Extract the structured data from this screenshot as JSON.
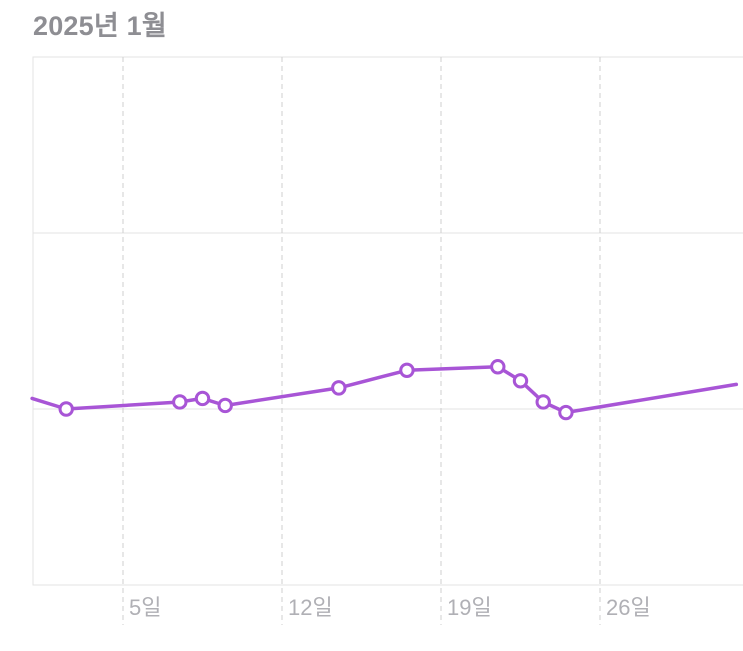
{
  "chart_data": {
    "type": "line",
    "title": "2025년 1월",
    "xlabel": "",
    "ylabel": "",
    "x_ticks": [
      {
        "day": 5,
        "label": "5일"
      },
      {
        "day": 12,
        "label": "12일"
      },
      {
        "day": 19,
        "label": "19일"
      },
      {
        "day": 26,
        "label": "26일"
      }
    ],
    "xlim": [
      1,
      32
    ],
    "ylim": [
      0,
      3
    ],
    "y_gridlines": [
      1,
      2
    ],
    "grid": true,
    "colors": {
      "line": "#a855d6",
      "marker_fill": "#ffffff",
      "grid": "#e3e3e3",
      "vertical_grid": "#cfcfcf",
      "title": "#8e8e93",
      "tick_label": "#b0b0b5"
    },
    "series": [
      {
        "points": [
          {
            "x": 1.0,
            "y": 1.06
          },
          {
            "x": 2.5,
            "y": 1.0,
            "marker": true
          },
          {
            "x": 7.5,
            "y": 1.04,
            "marker": true
          },
          {
            "x": 8.5,
            "y": 1.06,
            "marker": true
          },
          {
            "x": 9.5,
            "y": 1.02,
            "marker": true
          },
          {
            "x": 14.5,
            "y": 1.12,
            "marker": true
          },
          {
            "x": 17.5,
            "y": 1.22,
            "marker": true
          },
          {
            "x": 21.5,
            "y": 1.24,
            "marker": true
          },
          {
            "x": 22.5,
            "y": 1.16,
            "marker": true
          },
          {
            "x": 23.5,
            "y": 1.04,
            "marker": true
          },
          {
            "x": 24.5,
            "y": 0.98,
            "marker": true
          },
          {
            "x": 32.0,
            "y": 1.14
          }
        ]
      }
    ]
  }
}
